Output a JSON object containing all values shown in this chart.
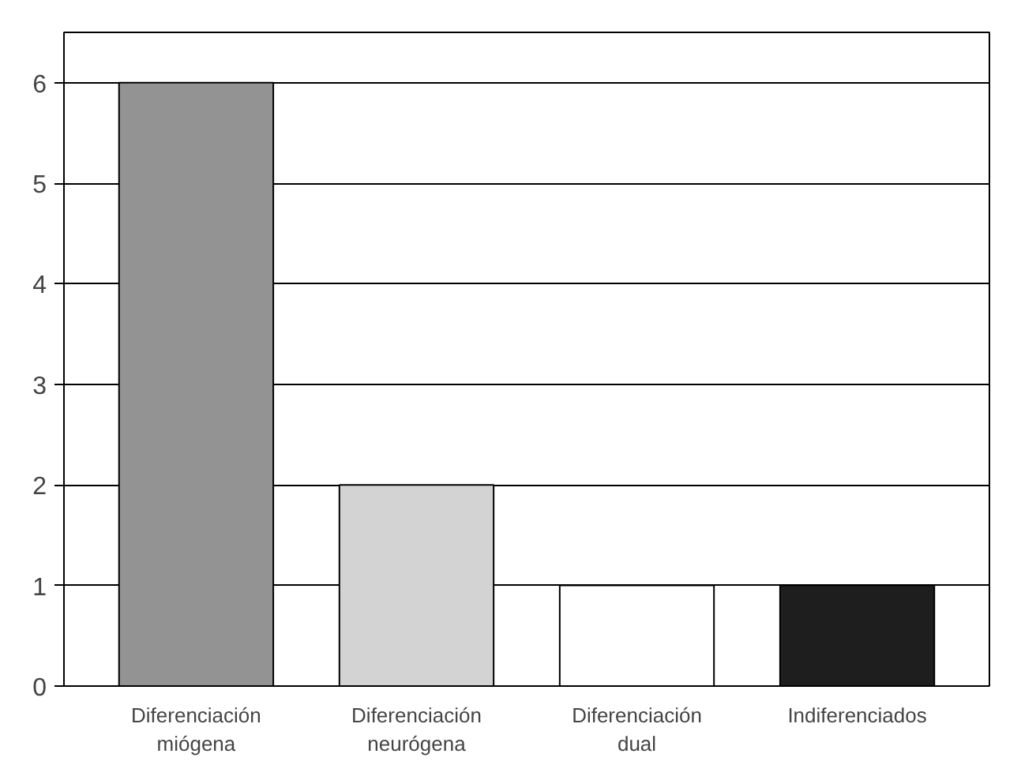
{
  "chart_data": {
    "type": "bar",
    "categories": [
      "Diferenciación miógena",
      "Diferenciación neurógena",
      "Diferenciación dual",
      "Indiferenciados"
    ],
    "values": [
      6,
      2,
      1,
      1
    ],
    "colors": [
      "#939393",
      "#d3d3d3",
      "#ffffff",
      "#1e1e1e"
    ],
    "ylim": [
      0,
      6.5
    ],
    "yticks": [
      0,
      1,
      2,
      3,
      4,
      5,
      6
    ],
    "grid": "y"
  }
}
